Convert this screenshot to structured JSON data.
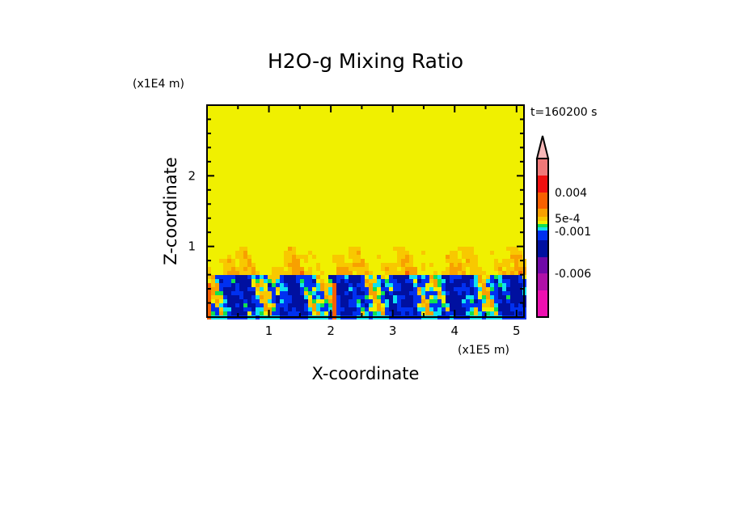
{
  "chart_data": {
    "type": "heatmap",
    "title": "H2O-g Mixing Ratio",
    "xlabel": "X-coordinate",
    "ylabel": "Z-coordinate",
    "x_unit": "(x1E5 m)",
    "y_unit": "(x1E4 m)",
    "time_label": "t=160200 s",
    "xlim": [
      0,
      5.12
    ],
    "ylim": [
      0,
      3
    ],
    "x_ticks": [
      "1",
      "2",
      "3",
      "4",
      "5"
    ],
    "x_tick_values": [
      1,
      2,
      3,
      4,
      5
    ],
    "y_ticks": [
      "1",
      "2"
    ],
    "y_tick_values": [
      1,
      2
    ],
    "colorbar": {
      "colors": [
        "#ee10b0",
        "#b010a8",
        "#7008a8",
        "#0010a0",
        "#0030f0",
        "#10e0f0",
        "#10e050",
        "#f0f000",
        "#f8c800",
        "#f8a000",
        "#f86000",
        "#f01010",
        "#f07878",
        "#f8b8b8"
      ],
      "labels": [
        "0.004",
        "5e-4",
        "-0.001",
        "-0.006"
      ],
      "label_level_index": [
        11,
        8,
        5,
        2
      ]
    },
    "field_description_levels": {
      "upper_background_level": 7,
      "mixed_layer_top": 1.0,
      "boundary_layer_top": 0.6
    }
  }
}
